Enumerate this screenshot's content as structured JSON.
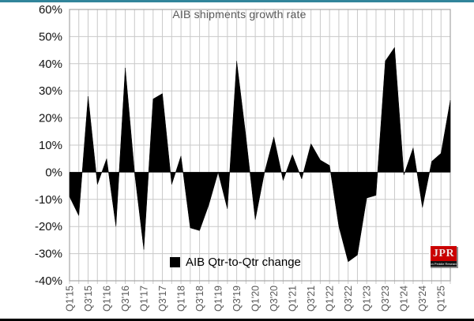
{
  "page": {
    "background": "#ffffff",
    "top_border_color": "#31859b",
    "bottom_border_color": "#000000"
  },
  "colors": {
    "area_fill": "#000000",
    "gridline": "#c9c9c9",
    "plot_border": "#a6a6a6",
    "title_text": "#595959",
    "x_tick_text": "#595959",
    "y_tick_text": "#111111",
    "logo_red": "#cc0000",
    "logo_strip": "#141414"
  },
  "chart_data": {
    "type": "area",
    "title": "AIB shipments growth rate",
    "xlabel": "",
    "ylabel": "",
    "ylim": [
      -40,
      60
    ],
    "grid": true,
    "legend_position": "bottom-center-inside",
    "categories": [
      "Q1'15",
      "Q2'15",
      "Q3'15",
      "Q4'15",
      "Q1'16",
      "Q2'16",
      "Q3'16",
      "Q4'16",
      "Q1'17",
      "Q2'17",
      "Q3'17",
      "Q4'17",
      "Q1'18",
      "Q2'18",
      "Q3'18",
      "Q4'18",
      "Q1'19",
      "Q2'19",
      "Q3'19",
      "Q4'19",
      "Q1'20",
      "Q2'20",
      "Q3'20",
      "Q4'20",
      "Q1'21",
      "Q2'21",
      "Q3'21",
      "Q4'21",
      "Q1'22",
      "Q2'22",
      "Q3'22",
      "Q4'22",
      "Q1'23",
      "Q2'23",
      "Q3'23",
      "Q4'23",
      "Q1'24",
      "Q2'24",
      "Q3'24",
      "Q4'24",
      "Q1'25",
      "Q2'25"
    ],
    "xtick_step": 2,
    "series": [
      {
        "name": "AIB Qtr-to-Qtr change",
        "color": "#000000",
        "values": [
          -9,
          -16,
          28,
          -4.5,
          5,
          -20,
          38.5,
          0,
          -28.5,
          27,
          29,
          -4.5,
          6,
          -20.5,
          -21.5,
          -12,
          0,
          -13.5,
          41,
          13,
          -17.5,
          0,
          13,
          -3,
          6.5,
          -2.5,
          10.5,
          4.5,
          2.5,
          -20,
          -33,
          -30.5,
          -9.5,
          -8.5,
          41,
          46,
          -1,
          9,
          -13,
          4,
          7,
          26.5
        ]
      }
    ],
    "yticks": [
      {
        "value": 60,
        "label": "60%"
      },
      {
        "value": 50,
        "label": "50%"
      },
      {
        "value": 40,
        "label": "40%"
      },
      {
        "value": 30,
        "label": "30%"
      },
      {
        "value": 20,
        "label": "20%"
      },
      {
        "value": 10,
        "label": "10%"
      },
      {
        "value": 0,
        "label": "0%"
      },
      {
        "value": -10,
        "label": "-10%"
      },
      {
        "value": -20,
        "label": "-20%"
      },
      {
        "value": -30,
        "label": "-30%"
      },
      {
        "value": -40,
        "label": "-40%"
      }
    ],
    "legend": {
      "label": "AIB Qtr-to-Qtr change",
      "swatch_color": "#000000"
    }
  },
  "logo": {
    "text": "JPR",
    "subtext": "Jon Peddie Research"
  }
}
